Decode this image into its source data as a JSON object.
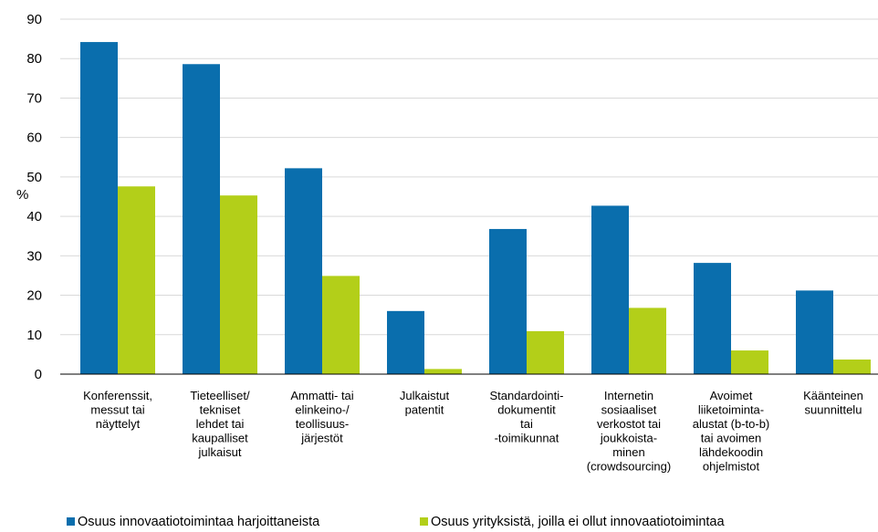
{
  "chart_data": {
    "type": "bar",
    "ylabel": "%",
    "ylim": [
      0,
      90
    ],
    "yticks": [
      0,
      10,
      20,
      30,
      40,
      50,
      60,
      70,
      80,
      90
    ],
    "grid": true,
    "legend_position": "bottom",
    "categories": [
      [
        "Konferenssit,",
        "messut tai",
        "näyttelyt"
      ],
      [
        "Tieteelliset/",
        "tekniset",
        "lehdet tai",
        "kaupalliset",
        "julkaisut"
      ],
      [
        "Ammatti- tai",
        "elinkeino-/",
        "teollisuus-",
        "järjestöt"
      ],
      [
        "Julkaistut",
        "patentit"
      ],
      [
        "Standardointi-",
        "dokumentit",
        "tai",
        "-toimikunnat"
      ],
      [
        "Internetin",
        "sosiaaliset",
        "verkostot tai",
        "joukkoista-",
        "minen",
        "(crowdsourcing)"
      ],
      [
        "Avoimet",
        "liiketoiminta-",
        "alustat (b-to-b)",
        "tai avoimen",
        "lähdekoodin",
        "ohjelmistot"
      ],
      [
        "Käänteinen",
        "suunnittelu"
      ]
    ],
    "series": [
      {
        "name": "Osuus innovaatiotoimintaa harjoittaneista",
        "color": "#0a6ead",
        "values": [
          84.2,
          78.6,
          52.2,
          16.0,
          36.8,
          42.7,
          28.2,
          21.2
        ]
      },
      {
        "name": "Osuus yrityksistä, joilla ei ollut innovaatiotoimintaa",
        "color": "#b3cf19",
        "values": [
          47.6,
          45.3,
          24.9,
          1.3,
          10.9,
          16.8,
          6.0,
          3.7
        ]
      }
    ]
  }
}
